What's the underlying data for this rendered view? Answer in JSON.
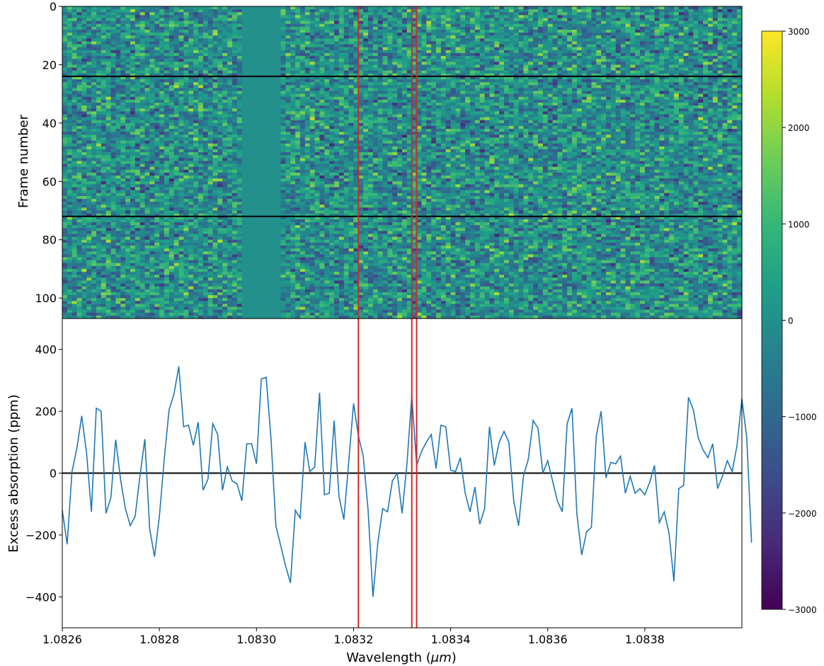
{
  "chart_data": [
    {
      "type": "heatmap",
      "ylabel": "Frame number",
      "xlim": [
        1.0826,
        1.084
      ],
      "ylim": [
        107,
        0
      ],
      "yticks": [
        0,
        20,
        40,
        60,
        80,
        100
      ],
      "n_columns": 140,
      "n_frames": 107,
      "masked_wavelength_range": [
        1.08297,
        1.08305
      ],
      "masked_value": 0,
      "hlines_frame": [
        24,
        72
      ],
      "colorbar": {
        "colormap": "viridis",
        "range": [
          -3000,
          3000
        ],
        "tick_labels": [
          "3000",
          "2000",
          "1000",
          "0",
          "−1000",
          "−2000",
          "−3000"
        ]
      }
    },
    {
      "type": "line",
      "xlabel": "Wavelength (μm)",
      "ylabel": "Excess absorption (ppm)",
      "xlim": [
        1.0826,
        1.084
      ],
      "ylim": [
        -500,
        500
      ],
      "xtick_labels": [
        "1.0826",
        "1.0828",
        "1.0830",
        "1.0832",
        "1.0834",
        "1.0836",
        "1.0838"
      ],
      "ytick_labels": [
        "400",
        "200",
        "0",
        "−200",
        "−400"
      ],
      "x_start": 1.0826,
      "x_step": 1e-05,
      "values": [
        -120,
        -230,
        5,
        80,
        185,
        65,
        -125,
        210,
        200,
        -130,
        -80,
        108,
        -20,
        -115,
        -170,
        -140,
        -10,
        110,
        -180,
        -270,
        -140,
        45,
        205,
        255,
        345,
        150,
        155,
        90,
        165,
        -55,
        -20,
        160,
        125,
        -55,
        20,
        -25,
        -35,
        -90,
        95,
        95,
        30,
        305,
        310,
        110,
        -170,
        -235,
        -300,
        -355,
        -120,
        -145,
        100,
        5,
        20,
        260,
        -70,
        -65,
        170,
        -75,
        -150,
        35,
        225,
        120,
        55,
        -120,
        -400,
        -225,
        -115,
        -125,
        -25,
        0,
        -130,
        30,
        250,
        25,
        70,
        100,
        125,
        15,
        155,
        150,
        10,
        5,
        50,
        -65,
        -125,
        -45,
        -165,
        -115,
        150,
        25,
        100,
        135,
        100,
        -90,
        -170,
        -10,
        45,
        170,
        145,
        0,
        40,
        -25,
        -90,
        -125,
        160,
        210,
        -130,
        -265,
        -190,
        -175,
        120,
        200,
        -15,
        35,
        30,
        55,
        -65,
        -10,
        -65,
        -50,
        -70,
        -30,
        25,
        -160,
        -125,
        -195,
        -350,
        -50,
        -40,
        245,
        205,
        115,
        75,
        50,
        95,
        -50,
        -10,
        40,
        5,
        90,
        240,
        115,
        -225
      ],
      "zero_line": 0,
      "marked_wavelengths": [
        1.08321,
        1.08332,
        1.08333
      ],
      "colors": {
        "line": "#1f77b4",
        "markers": "#d62728",
        "zero_line": "#000000"
      }
    }
  ]
}
